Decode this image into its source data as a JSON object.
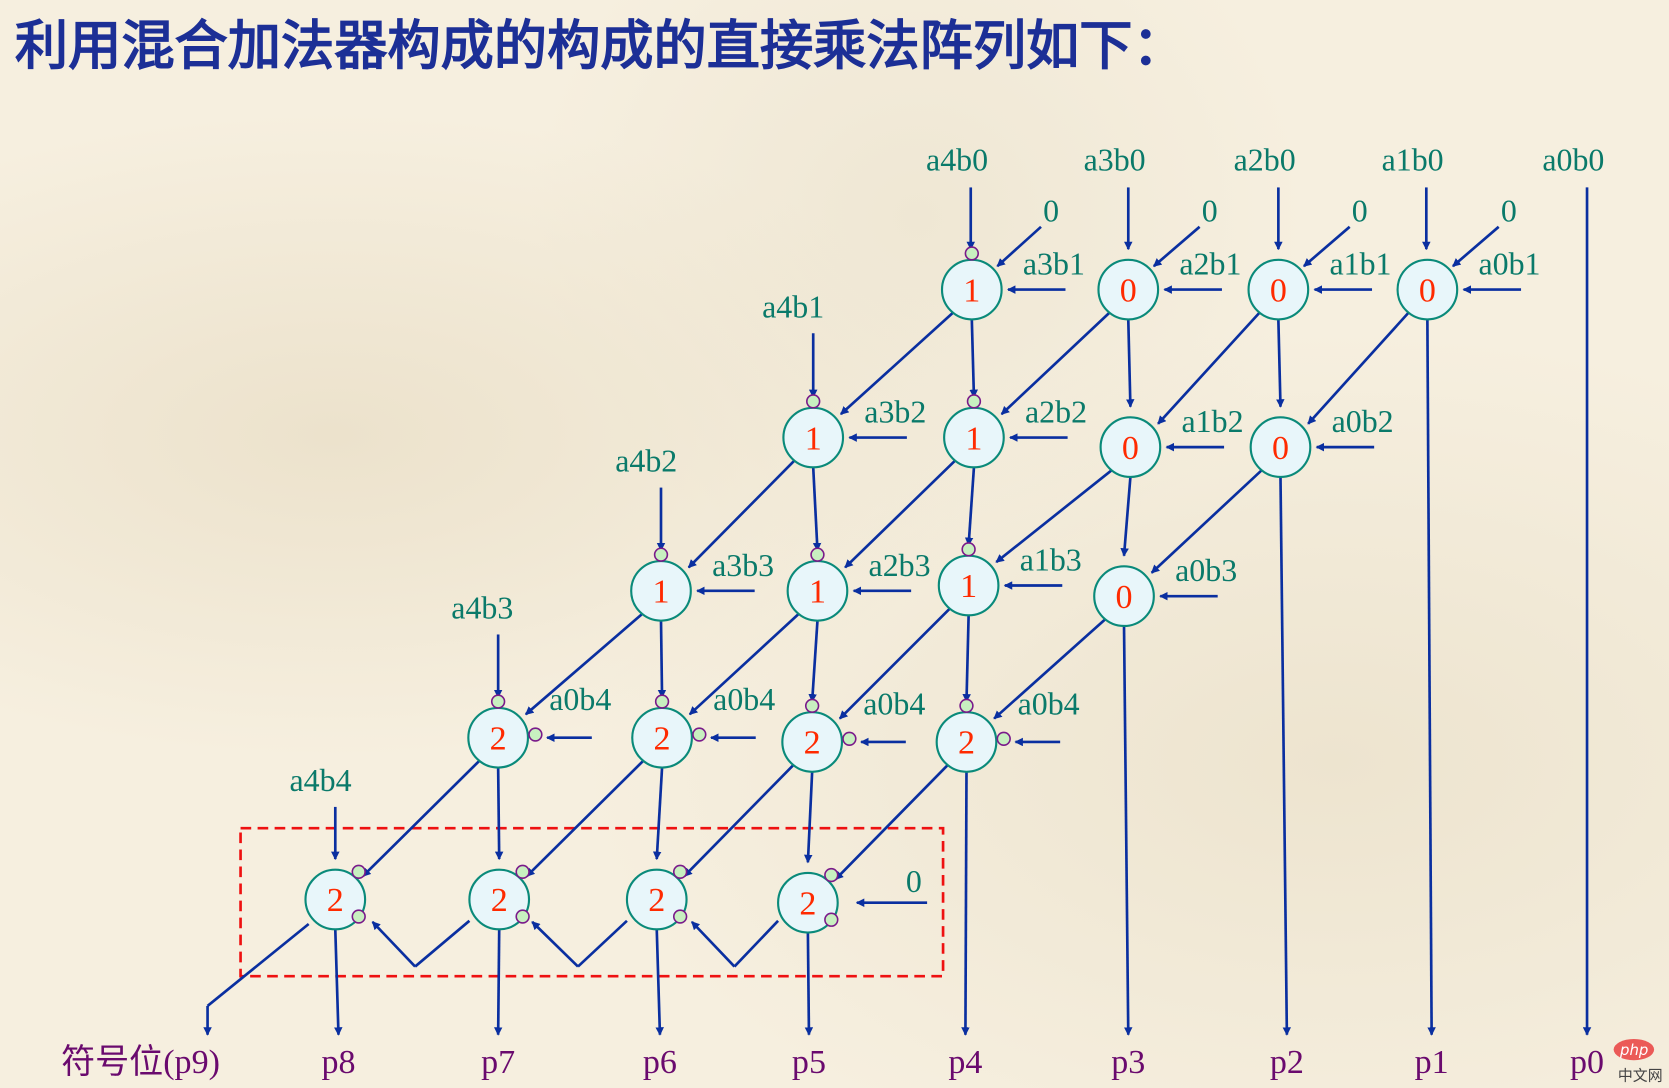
{
  "title": "利用混合加法器构成的构成的直接乘法阵列如下：",
  "colors": {
    "title": "#1c2f96",
    "lines": "#0a2fa0",
    "labels": "#0a7a6a",
    "outputs": "#6a0a6e",
    "node_values": "#ff2a00",
    "node_fill": "#e8f6fa",
    "node_stroke": "#0a8a7a",
    "box": "#ee1111"
  },
  "top_inputs": [
    "a4b0",
    "a3b0",
    "a2b0",
    "a1b0",
    "a0b0"
  ],
  "carry_in_zeros": [
    "0",
    "0",
    "0",
    "0"
  ],
  "left_inputs": [
    "a4b1",
    "a4b2",
    "a4b3",
    "a4b4"
  ],
  "rows": [
    {
      "values": [
        "1",
        "0",
        "0",
        "0"
      ],
      "side_inputs": [
        "a3b1",
        "a2b1",
        "a1b1",
        "a0b1"
      ]
    },
    {
      "values": [
        "1",
        "1",
        "0",
        "0"
      ],
      "side_inputs": [
        "a3b2",
        "a2b2",
        "a1b2",
        "a0b2"
      ]
    },
    {
      "values": [
        "1",
        "1",
        "1",
        "0"
      ],
      "side_inputs": [
        "a3b3",
        "a2b3",
        "a1b3",
        "a0b3"
      ]
    },
    {
      "values": [
        "2",
        "2",
        "2",
        "2"
      ],
      "side_inputs": [
        "a0b4",
        "a0b4",
        "a0b4",
        "a0b4"
      ]
    },
    {
      "values": [
        "2",
        "2",
        "2",
        "2"
      ],
      "side_inputs": [
        "",
        "",
        "",
        "0"
      ]
    }
  ],
  "outputs": [
    "符号位(p9)",
    "p8",
    "p7",
    "p6",
    "p5",
    "p4",
    "p3",
    "p2",
    "p1",
    "p0"
  ],
  "watermark": {
    "logo": "php",
    "text": "中文网"
  }
}
